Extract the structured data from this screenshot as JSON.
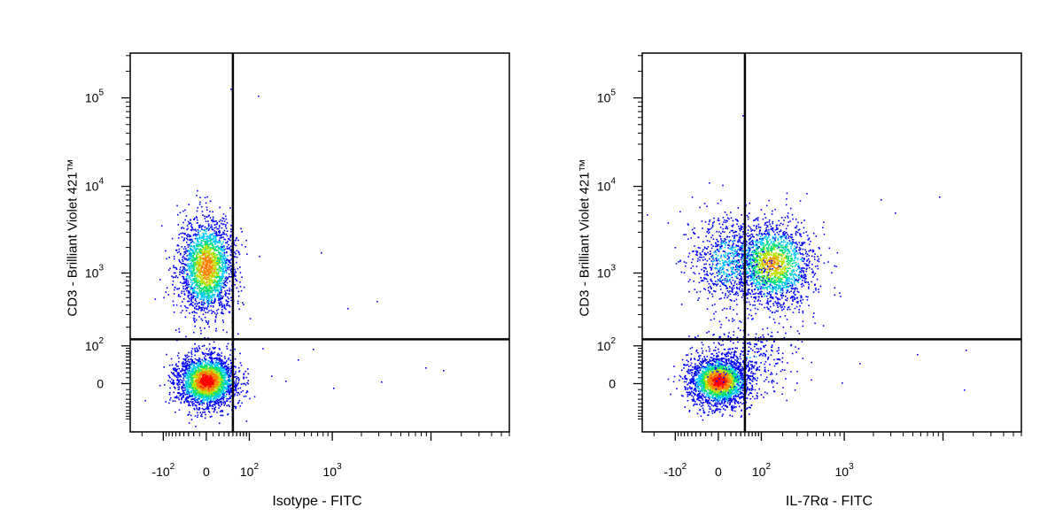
{
  "chart_data": [
    {
      "type": "scatter",
      "plot": "density-dot-plot",
      "xlabel": "Isotype - FITC",
      "ylabel": "CD3 - Brilliant Violet 421™",
      "x_scale": "biexponential",
      "y_scale": "biexponential",
      "x_ticks": [
        {
          "value": -100,
          "base": "-10",
          "exp": "2"
        },
        {
          "value": 0,
          "base": "0",
          "exp": ""
        },
        {
          "value": 100,
          "base": "10",
          "exp": "2"
        },
        {
          "value": 1000,
          "base": "10",
          "exp": "3"
        }
      ],
      "y_ticks": [
        {
          "value": 0,
          "base": "0",
          "exp": ""
        },
        {
          "value": 100,
          "base": "10",
          "exp": "2"
        },
        {
          "value": 1000,
          "base": "10",
          "exp": "3"
        },
        {
          "value": 10000,
          "base": "10",
          "exp": "4"
        },
        {
          "value": 100000,
          "base": "10",
          "exp": "5"
        }
      ],
      "quadrant_gate": {
        "x": 50,
        "y": 130
      },
      "populations": [
        {
          "name": "CD3- cluster",
          "x_center": 0,
          "y_center": 5,
          "density": "high"
        },
        {
          "name": "CD3+ cluster",
          "x_center": 0,
          "y_center": 1200,
          "density": "high"
        }
      ],
      "colormap": [
        "#0000ff",
        "#00c8ff",
        "#00e070",
        "#c0e000",
        "#ff8000",
        "#ff0000"
      ]
    },
    {
      "type": "scatter",
      "plot": "density-dot-plot",
      "xlabel": "IL-7Rα - FITC",
      "ylabel": "CD3 - Brilliant Violet 421™",
      "x_scale": "biexponential",
      "y_scale": "biexponential",
      "x_ticks": [
        {
          "value": -100,
          "base": "-10",
          "exp": "2"
        },
        {
          "value": 0,
          "base": "0",
          "exp": ""
        },
        {
          "value": 100,
          "base": "10",
          "exp": "2"
        },
        {
          "value": 1000,
          "base": "10",
          "exp": "3"
        }
      ],
      "y_ticks": [
        {
          "value": 0,
          "base": "0",
          "exp": ""
        },
        {
          "value": 100,
          "base": "10",
          "exp": "2"
        },
        {
          "value": 1000,
          "base": "10",
          "exp": "3"
        },
        {
          "value": 10000,
          "base": "10",
          "exp": "4"
        },
        {
          "value": 100000,
          "base": "10",
          "exp": "5"
        }
      ],
      "quadrant_gate": {
        "x": 50,
        "y": 130
      },
      "populations": [
        {
          "name": "CD3- IL-7Rα- cluster",
          "x_center": 0,
          "y_center": 5,
          "density": "high"
        },
        {
          "name": "CD3+ IL-7Rα+ cluster",
          "x_center": 140,
          "y_center": 1300,
          "density": "medium"
        },
        {
          "name": "CD3+ IL-7Rα- cluster",
          "x_center": 10,
          "y_center": 1500,
          "density": "low"
        }
      ],
      "colormap": [
        "#0000ff",
        "#00c8ff",
        "#00e070",
        "#c0e000",
        "#ff8000",
        "#ff0000"
      ]
    }
  ]
}
